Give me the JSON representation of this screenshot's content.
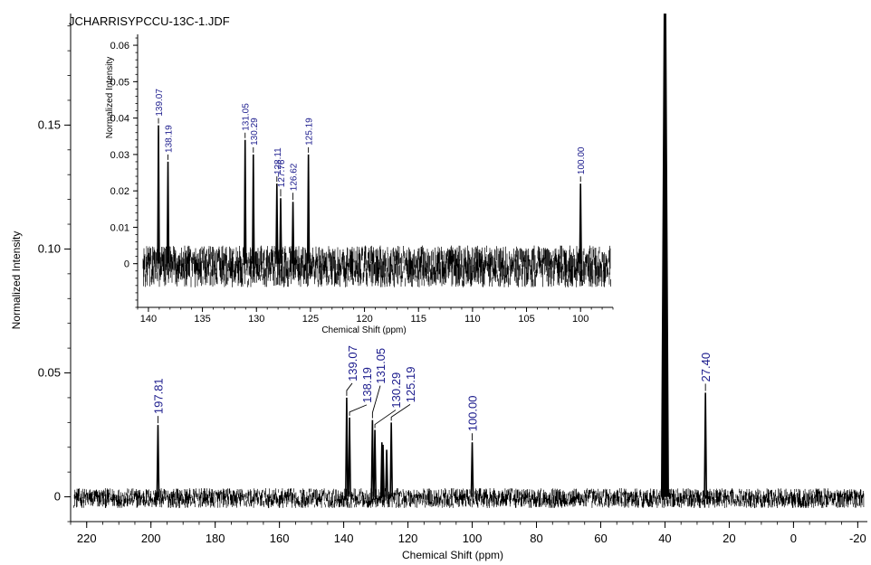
{
  "chart_data": [
    {
      "type": "line",
      "title": "JCHARRISYPCCU-13C-1.JDF",
      "xlabel": "Chemical Shift (ppm)",
      "ylabel": "Normalized Intensity",
      "xlim": [
        225,
        -23
      ],
      "ylim": [
        -0.01,
        0.195
      ],
      "x_reversed": true,
      "xticks": [
        220,
        200,
        180,
        160,
        140,
        120,
        100,
        80,
        60,
        40,
        20,
        0,
        -20
      ],
      "xtick_labels": [
        "220",
        "200",
        "180",
        "160",
        "140",
        "120",
        "100",
        "80",
        "60",
        "40",
        "20",
        "0",
        "-20"
      ],
      "yticks": [
        0,
        0.05,
        0.1,
        0.15
      ],
      "ytick_labels": [
        "0",
        "0.05",
        "0.10",
        "0.15"
      ],
      "noise_range": [
        224,
        -22
      ],
      "noise_amplitude": 0.0035,
      "peaks": [
        {
          "x": 197.81,
          "y": 0.029,
          "label": "197.81"
        },
        {
          "x": 139.07,
          "y": 0.04,
          "label": "139.07"
        },
        {
          "x": 138.19,
          "y": 0.032,
          "label": "138.19"
        },
        {
          "x": 131.05,
          "y": 0.031,
          "label": "131.05"
        },
        {
          "x": 130.29,
          "y": 0.027,
          "label": "130.29"
        },
        {
          "x": 128.11,
          "y": 0.022,
          "label": ""
        },
        {
          "x": 127.76,
          "y": 0.021,
          "label": ""
        },
        {
          "x": 126.62,
          "y": 0.019,
          "label": ""
        },
        {
          "x": 125.19,
          "y": 0.03,
          "label": "125.19"
        },
        {
          "x": 100.0,
          "y": 0.022,
          "label": "100.00"
        },
        {
          "x": 40.0,
          "y": 0.195,
          "label": ""
        },
        {
          "x": 27.4,
          "y": 0.042,
          "label": "27.40"
        }
      ]
    },
    {
      "type": "line",
      "title": "",
      "xlabel": "Chemical Shift (ppm)",
      "ylabel": "Normalized Intensity",
      "xlim": [
        141,
        97
      ],
      "ylim": [
        -0.012,
        0.063
      ],
      "x_reversed": true,
      "xticks": [
        140,
        135,
        130,
        125,
        120,
        115,
        110,
        105,
        100
      ],
      "xtick_labels": [
        "140",
        "135",
        "130",
        "125",
        "120",
        "115",
        "110",
        "105",
        "100"
      ],
      "yticks": [
        0,
        0.01,
        0.02,
        0.03,
        0.04,
        0.05,
        0.06
      ],
      "ytick_labels": [
        "0",
        "0.01",
        "0.02",
        "0.03",
        "0.04",
        "0.05",
        "0.06"
      ],
      "noise_range": [
        140.5,
        97.2
      ],
      "noise_amplitude": 0.005,
      "peaks": [
        {
          "x": 139.07,
          "y": 0.038,
          "label": "139.07"
        },
        {
          "x": 138.19,
          "y": 0.028,
          "label": "138.19"
        },
        {
          "x": 131.05,
          "y": 0.034,
          "label": "131.05"
        },
        {
          "x": 130.29,
          "y": 0.03,
          "label": "130.29"
        },
        {
          "x": 128.11,
          "y": 0.022,
          "label": "128.11"
        },
        {
          "x": 127.76,
          "y": 0.018,
          "label": "127.76"
        },
        {
          "x": 126.62,
          "y": 0.017,
          "label": "126.62"
        },
        {
          "x": 125.19,
          "y": 0.03,
          "label": "125.19"
        },
        {
          "x": 100.0,
          "y": 0.022,
          "label": "100.00"
        }
      ]
    }
  ],
  "colors": {
    "trace": "#000000",
    "peak_label": "#1a1a8c",
    "axis": "#000000"
  }
}
